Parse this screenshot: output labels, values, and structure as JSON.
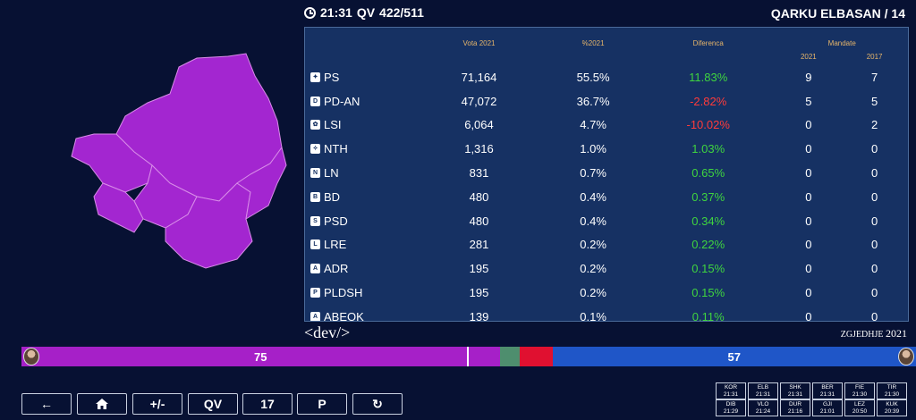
{
  "header": {
    "time": "21:31",
    "qv_label": "QV",
    "qv_count": "422/511",
    "region_title": "QARKU ELBASAN / 14"
  },
  "table": {
    "col_votes": "Vota 2021",
    "col_pct": "%2021",
    "col_diff": "Diferenca",
    "col_mandates": "Mandate",
    "col_m2021": "2021",
    "col_m2017": "2017",
    "rows": [
      {
        "party": "PS",
        "votes": "71,164",
        "pct": "55.5%",
        "diff": "11.83%",
        "m2021": "9",
        "m2017": "7"
      },
      {
        "party": "PD-AN",
        "votes": "47,072",
        "pct": "36.7%",
        "diff": "-2.82%",
        "m2021": "5",
        "m2017": "5"
      },
      {
        "party": "LSI",
        "votes": "6,064",
        "pct": "4.7%",
        "diff": "-10.02%",
        "m2021": "0",
        "m2017": "2"
      },
      {
        "party": "NTH",
        "votes": "1,316",
        "pct": "1.0%",
        "diff": "1.03%",
        "m2021": "0",
        "m2017": "0"
      },
      {
        "party": "LN",
        "votes": "831",
        "pct": "0.7%",
        "diff": "0.65%",
        "m2021": "0",
        "m2017": "0"
      },
      {
        "party": "BD",
        "votes": "480",
        "pct": "0.4%",
        "diff": "0.37%",
        "m2021": "0",
        "m2017": "0"
      },
      {
        "party": "PSD",
        "votes": "480",
        "pct": "0.4%",
        "diff": "0.34%",
        "m2021": "0",
        "m2017": "0"
      },
      {
        "party": "LRE",
        "votes": "281",
        "pct": "0.2%",
        "diff": "0.22%",
        "m2021": "0",
        "m2017": "0"
      },
      {
        "party": "ADR",
        "votes": "195",
        "pct": "0.2%",
        "diff": "0.15%",
        "m2021": "0",
        "m2017": "0"
      },
      {
        "party": "PLDSH",
        "votes": "195",
        "pct": "0.2%",
        "diff": "0.15%",
        "m2021": "0",
        "m2017": "0"
      },
      {
        "party": "ABEOK",
        "votes": "139",
        "pct": "0.1%",
        "diff": "0.11%",
        "m2021": "0",
        "m2017": "0"
      }
    ]
  },
  "brand": {
    "logo_text": "<dev/>",
    "event_label": "ZGJEDHJE",
    "event_year": "2021"
  },
  "seatbar": {
    "ps_seats": "75",
    "pd_seats": "57",
    "ps_share": 0.5345,
    "other1_share": 0.0225,
    "other2_share": 0.0365,
    "pd_share": 0.4065
  },
  "colors": {
    "ps": "#a620c8",
    "pd": "#1f56c8",
    "positive": "#3fd43f",
    "negative": "#ff3b3b",
    "header_gold": "#e6b56a",
    "background": "#071133"
  },
  "controls": {
    "back_icon": "arrow-left-icon",
    "home_icon": "home-icon",
    "plusminus": "+/-",
    "qv": "QV",
    "number": "17",
    "p": "P",
    "refresh_icon": "refresh-icon"
  },
  "regions": [
    {
      "code": "KOR",
      "time": "21:31"
    },
    {
      "code": "ELB",
      "time": "21:31"
    },
    {
      "code": "SHK",
      "time": "21:31"
    },
    {
      "code": "BER",
      "time": "21:31"
    },
    {
      "code": "FIE",
      "time": "21:30"
    },
    {
      "code": "TIR",
      "time": "21:30"
    },
    {
      "code": "DIB",
      "time": "21:29"
    },
    {
      "code": "VLO",
      "time": "21:24"
    },
    {
      "code": "DUR",
      "time": "21:16"
    },
    {
      "code": "GJI",
      "time": "21:01"
    },
    {
      "code": "LEZ",
      "time": "20:50"
    },
    {
      "code": "KUK",
      "time": "20:39"
    }
  ]
}
